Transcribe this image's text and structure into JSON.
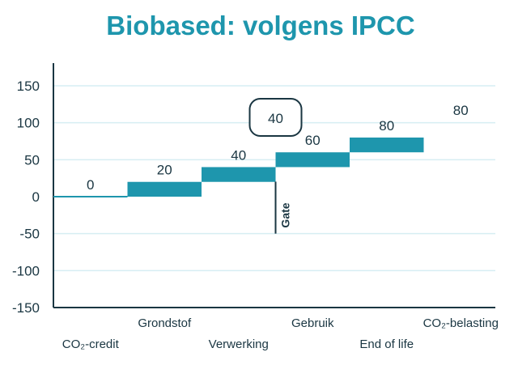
{
  "chart_data": {
    "type": "bar",
    "title": "Biobased: volgens IPCC",
    "categories": [
      "CO₂-credit",
      "Grondstof",
      "Verwerking",
      "Gebruik",
      "End of life",
      "CO₂-belasting"
    ],
    "base": [
      0,
      0,
      20,
      40,
      60,
      80
    ],
    "values": [
      0,
      20,
      40,
      60,
      80,
      80
    ],
    "value_labels": [
      "0",
      "20",
      "40",
      "60",
      "80",
      "80"
    ],
    "ylim": [
      -150,
      150
    ],
    "yticks": [
      150,
      100,
      50,
      0,
      -50,
      -100,
      -150
    ],
    "ytick_labels": [
      "150",
      "100",
      "50",
      "0",
      "-50",
      "-100",
      "-150"
    ],
    "grid": true,
    "gate": {
      "label": "Gate",
      "value": 40,
      "value_label": "40"
    },
    "colors": {
      "bar": "#1e96ad",
      "axis": "#1a3642",
      "grid": "#d6eef3",
      "title": "#1e96ad",
      "text": "#1a3642"
    }
  }
}
